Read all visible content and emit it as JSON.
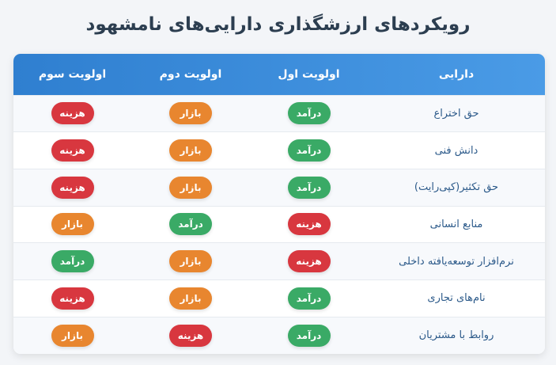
{
  "title": "رویکردهای ارزشگذاری دارایی‌های نامشهود",
  "headers": {
    "asset": "دارایی",
    "first": "اولویت اول",
    "second": "اولویت دوم",
    "third": "اولویت سوم"
  },
  "colors": {
    "income": "#3aaa66",
    "market": "#e8862f",
    "cost": "#d8373f",
    "header_start": "#2f7fd0",
    "header_end": "#4a9be6"
  },
  "rows": [
    {
      "asset": "حق اختراع",
      "first": {
        "label": "درآمد",
        "type": "income"
      },
      "second": {
        "label": "بازار",
        "type": "market"
      },
      "third": {
        "label": "هزینه",
        "type": "cost"
      }
    },
    {
      "asset": "دانش فنی",
      "first": {
        "label": "درآمد",
        "type": "income"
      },
      "second": {
        "label": "بازار",
        "type": "market"
      },
      "third": {
        "label": "هزینه",
        "type": "cost"
      }
    },
    {
      "asset": "حق تکثیر(کپی‌رایت)",
      "first": {
        "label": "درآمد",
        "type": "income"
      },
      "second": {
        "label": "بازار",
        "type": "market"
      },
      "third": {
        "label": "هزینه",
        "type": "cost"
      }
    },
    {
      "asset": "منابع انسانی",
      "first": {
        "label": "هزینه",
        "type": "cost"
      },
      "second": {
        "label": "درآمد",
        "type": "income"
      },
      "third": {
        "label": "بازار",
        "type": "market"
      }
    },
    {
      "asset": "نرم‌افزار توسعه‌یافته داخلی",
      "first": {
        "label": "هزینه",
        "type": "cost"
      },
      "second": {
        "label": "بازار",
        "type": "market"
      },
      "third": {
        "label": "درآمد",
        "type": "income"
      }
    },
    {
      "asset": "نام‌های تجاری",
      "first": {
        "label": "درآمد",
        "type": "income"
      },
      "second": {
        "label": "بازار",
        "type": "market"
      },
      "third": {
        "label": "هزینه",
        "type": "cost"
      }
    },
    {
      "asset": "روابط با مشتریان",
      "first": {
        "label": "درآمد",
        "type": "income"
      },
      "second": {
        "label": "هزینه",
        "type": "cost"
      },
      "third": {
        "label": "بازار",
        "type": "market"
      }
    }
  ]
}
